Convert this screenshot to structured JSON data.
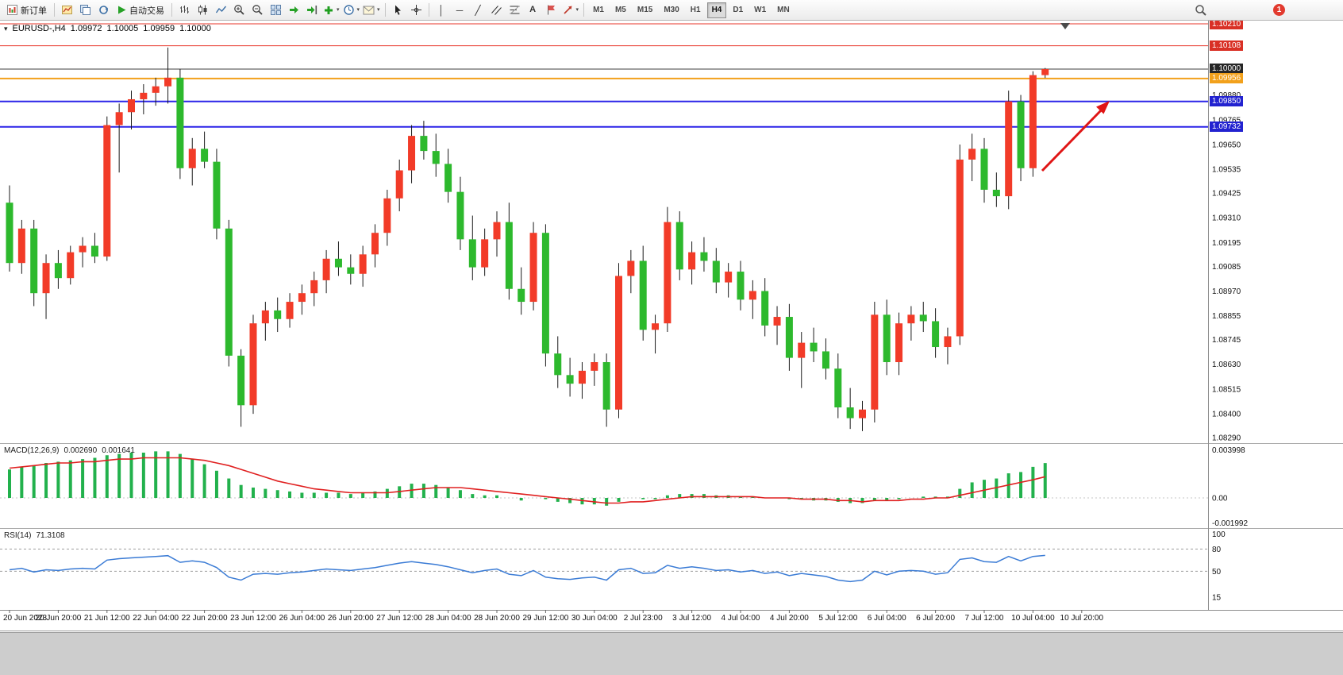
{
  "toolbar": {
    "new_order_label": "新订单",
    "autotrading_label": "自动交易",
    "glyphs": {
      "vertical_line": "│",
      "horizontal_line": "─",
      "trendline": "╱",
      "text_tool": "A",
      "caret": "▾",
      "one_click": "▾"
    },
    "timeframes": [
      "M1",
      "M5",
      "M15",
      "M30",
      "H1",
      "H4",
      "D1",
      "W1",
      "MN"
    ],
    "active_timeframe": "H4",
    "notification_count": "1"
  },
  "chart_header": {
    "symbol_period": "EURUSD-,H4",
    "open": "1.09972",
    "high": "1.10005",
    "low": "1.09959",
    "close": "1.10000"
  },
  "chart_data": {
    "type": "candlestick",
    "symbol": "EURUSD-",
    "timeframe": "H4",
    "convention": "red = bullish up candle, green = bearish down candle",
    "up_color": "#f23b28",
    "down_color": "#2db92d",
    "price_axis": {
      "visible_top": 1.1021,
      "visible_bottom": 1.0829,
      "ticks": [
        "1.09880",
        "1.09765",
        "1.09650",
        "1.09535",
        "1.09425",
        "1.09310",
        "1.09195",
        "1.09085",
        "1.08970",
        "1.08855",
        "1.08745",
        "1.08630",
        "1.08515",
        "1.08400",
        "1.08290"
      ]
    },
    "hlines": [
      {
        "price": 1.1021,
        "label": "1.10210",
        "color": "#e8352a",
        "label_bg": "#d93025",
        "width": 1
      },
      {
        "price": 1.10108,
        "label": "1.10108",
        "color": "#e8352a",
        "label_bg": "#d93025",
        "width": 1
      },
      {
        "price": 1.1,
        "label": "1.10000",
        "color": "#3f3f3f",
        "label_bg": "#262626",
        "width": 1
      },
      {
        "price": 1.09956,
        "label": "1.09956",
        "color": "#f2a11c",
        "label_bg": "#f2a11c",
        "width": 2
      },
      {
        "price": 1.0985,
        "label": "1.09850",
        "color": "#2b24e8",
        "label_bg": "#2222d0",
        "width": 2
      },
      {
        "price": 1.09732,
        "label": "1.09732",
        "color": "#2b24e8",
        "label_bg": "#2222d0",
        "width": 2
      }
    ],
    "time_labels": [
      "20 Jun 2023",
      "20 Jun 20:00",
      "21 Jun 12:00",
      "22 Jun 04:00",
      "22 Jun 20:00",
      "23 Jun 12:00",
      "26 Jun 04:00",
      "26 Jun 20:00",
      "27 Jun 12:00",
      "28 Jun 04:00",
      "28 Jun 20:00",
      "29 Jun 12:00",
      "30 Jun 04:00",
      "2 Jul 23:00",
      "3 Jul 12:00",
      "4 Jul 04:00",
      "4 Jul 20:00",
      "5 Jul 12:00",
      "6 Jul 04:00",
      "6 Jul 20:00",
      "7 Jul 12:00",
      "10 Jul 04:00",
      "10 Jul 20:00"
    ],
    "candles": [
      [
        1.0938,
        1.0946,
        1.0906,
        1.091
      ],
      [
        1.091,
        1.093,
        1.0905,
        1.0926
      ],
      [
        1.0926,
        1.093,
        1.089,
        1.0896
      ],
      [
        1.0896,
        1.0914,
        1.0884,
        1.091
      ],
      [
        1.091,
        1.0916,
        1.0898,
        1.0903
      ],
      [
        1.0903,
        1.0918,
        1.09,
        1.0915
      ],
      [
        1.0915,
        1.0922,
        1.0908,
        1.0918
      ],
      [
        1.0918,
        1.0924,
        1.091,
        1.0913
      ],
      [
        1.0913,
        1.0978,
        1.0911,
        1.0974
      ],
      [
        1.0974,
        1.0984,
        1.0952,
        1.098
      ],
      [
        1.098,
        1.099,
        1.0972,
        1.0986
      ],
      [
        1.0986,
        1.0993,
        1.0979,
        1.0989
      ],
      [
        1.0989,
        1.0996,
        1.0983,
        1.0992
      ],
      [
        1.0992,
        1.101,
        1.0984,
        1.0996
      ],
      [
        1.0996,
        1.1,
        1.0949,
        1.0954
      ],
      [
        1.0954,
        1.0968,
        1.0946,
        1.0963
      ],
      [
        1.0963,
        1.0971,
        1.0954,
        1.0957
      ],
      [
        1.0957,
        1.0963,
        1.0921,
        1.0926
      ],
      [
        1.0926,
        1.093,
        1.0862,
        1.0867
      ],
      [
        1.0867,
        1.087,
        1.0834,
        1.0844
      ],
      [
        1.0844,
        1.0886,
        1.084,
        1.0882
      ],
      [
        1.0882,
        1.0892,
        1.0874,
        1.0888
      ],
      [
        1.0888,
        1.0894,
        1.0878,
        1.0884
      ],
      [
        1.0884,
        1.0896,
        1.088,
        1.0892
      ],
      [
        1.0892,
        1.09,
        1.0886,
        1.0896
      ],
      [
        1.0896,
        1.0906,
        1.089,
        1.0902
      ],
      [
        1.0902,
        1.0916,
        1.0896,
        1.0912
      ],
      [
        1.0912,
        1.092,
        1.0904,
        1.0908
      ],
      [
        1.0908,
        1.0914,
        1.09,
        1.0905
      ],
      [
        1.0905,
        1.0918,
        1.0899,
        1.0914
      ],
      [
        1.0914,
        1.0928,
        1.0908,
        1.0924
      ],
      [
        1.0924,
        1.0944,
        1.0918,
        1.094
      ],
      [
        1.094,
        1.0958,
        1.0934,
        1.0953
      ],
      [
        1.0953,
        1.0974,
        1.0947,
        1.0969
      ],
      [
        1.0969,
        1.0976,
        1.0958,
        1.0962
      ],
      [
        1.0962,
        1.097,
        1.095,
        1.0956
      ],
      [
        1.0956,
        1.0963,
        1.0938,
        1.0943
      ],
      [
        1.0943,
        1.095,
        1.0916,
        1.0921
      ],
      [
        1.0921,
        1.0932,
        1.0902,
        1.0908
      ],
      [
        1.0908,
        1.0926,
        1.0904,
        1.0921
      ],
      [
        1.0921,
        1.0934,
        1.0913,
        1.0929
      ],
      [
        1.0929,
        1.0938,
        1.0893,
        1.0898
      ],
      [
        1.0898,
        1.0908,
        1.0886,
        1.0892
      ],
      [
        1.0892,
        1.0929,
        1.0888,
        1.0924
      ],
      [
        1.0924,
        1.0928,
        1.0862,
        1.0868
      ],
      [
        1.0868,
        1.0876,
        1.0852,
        1.0858
      ],
      [
        1.0858,
        1.0866,
        1.0848,
        1.0854
      ],
      [
        1.0854,
        1.0864,
        1.0847,
        1.086
      ],
      [
        1.086,
        1.0868,
        1.0853,
        1.0864
      ],
      [
        1.0864,
        1.0868,
        1.0834,
        1.0842
      ],
      [
        1.0842,
        1.091,
        1.0838,
        1.0904
      ],
      [
        1.0904,
        1.0916,
        1.0896,
        1.0911
      ],
      [
        1.0911,
        1.0918,
        1.0874,
        1.0879
      ],
      [
        1.0879,
        1.0886,
        1.0868,
        1.0882
      ],
      [
        1.0882,
        1.0936,
        1.0878,
        1.0929
      ],
      [
        1.0929,
        1.0934,
        1.0902,
        1.0907
      ],
      [
        1.0907,
        1.092,
        1.09,
        1.0915
      ],
      [
        1.0915,
        1.0922,
        1.0906,
        1.0911
      ],
      [
        1.0911,
        1.0917,
        1.0896,
        1.0901
      ],
      [
        1.0901,
        1.091,
        1.0894,
        1.0906
      ],
      [
        1.0906,
        1.0911,
        1.0888,
        1.0893
      ],
      [
        1.0893,
        1.0902,
        1.0884,
        1.0897
      ],
      [
        1.0897,
        1.0903,
        1.0876,
        1.0881
      ],
      [
        1.0881,
        1.089,
        1.0872,
        1.0885
      ],
      [
        1.0885,
        1.0891,
        1.086,
        1.0866
      ],
      [
        1.0866,
        1.0878,
        1.0852,
        1.0873
      ],
      [
        1.0873,
        1.088,
        1.0864,
        1.0869
      ],
      [
        1.0869,
        1.0875,
        1.0856,
        1.0861
      ],
      [
        1.0861,
        1.0868,
        1.0838,
        1.0843
      ],
      [
        1.0843,
        1.0852,
        1.0833,
        1.0838
      ],
      [
        1.0838,
        1.0846,
        1.0832,
        1.0842
      ],
      [
        1.0842,
        1.0892,
        1.0836,
        1.0886
      ],
      [
        1.0886,
        1.0893,
        1.0858,
        1.0864
      ],
      [
        1.0864,
        1.0887,
        1.0858,
        1.0882
      ],
      [
        1.0882,
        1.089,
        1.0874,
        1.0886
      ],
      [
        1.0886,
        1.0892,
        1.0878,
        1.0883
      ],
      [
        1.0883,
        1.0889,
        1.0866,
        1.0871
      ],
      [
        1.0871,
        1.088,
        1.0863,
        1.0876
      ],
      [
        1.0876,
        1.0965,
        1.0872,
        1.0958
      ],
      [
        1.0958,
        1.097,
        1.0948,
        1.0963
      ],
      [
        1.0963,
        1.0968,
        1.0938,
        1.0944
      ],
      [
        1.0944,
        1.0952,
        1.0936,
        1.0941
      ],
      [
        1.0941,
        1.099,
        1.0935,
        1.0985
      ],
      [
        1.0985,
        1.0988,
        1.0948,
        1.0954
      ],
      [
        1.0954,
        1.0999,
        1.095,
        1.09972
      ],
      [
        1.09972,
        1.10005,
        1.09959,
        1.1
      ]
    ]
  },
  "macd": {
    "label": "MACD(12,26,9)",
    "main_value": "0.002690",
    "signal_value": "0.001641",
    "scale": {
      "top": "0.003998",
      "zero": "0.00",
      "bottom": "-0.001992"
    },
    "histogram_color": "#22b14c",
    "signal_color": "#e02020",
    "histogram": [
      0.0022,
      0.0024,
      0.0025,
      0.0027,
      0.0028,
      0.0029,
      0.003,
      0.0031,
      0.0033,
      0.0034,
      0.0035,
      0.0035,
      0.0036,
      0.0036,
      0.0034,
      0.003,
      0.0026,
      0.0021,
      0.0015,
      0.001,
      0.0008,
      0.0007,
      0.0006,
      0.0005,
      0.0004,
      0.0004,
      0.0004,
      0.0004,
      0.0003,
      0.0004,
      0.0005,
      0.0007,
      0.0009,
      0.0011,
      0.0011,
      0.001,
      0.0008,
      0.0006,
      0.0003,
      0.0002,
      0.0002,
      0.0,
      -0.0002,
      0.0,
      -0.0001,
      -0.0003,
      -0.0004,
      -0.0005,
      -0.0005,
      -0.0006,
      -0.0003,
      0.0,
      -0.0001,
      -0.0001,
      0.0002,
      0.0003,
      0.0003,
      0.0003,
      0.0002,
      0.0002,
      0.0001,
      0.0001,
      0.0,
      0.0,
      -0.0001,
      -0.0001,
      -0.0002,
      -0.0002,
      -0.0003,
      -0.0004,
      -0.0004,
      -0.0002,
      -0.0002,
      -0.0001,
      0.0,
      0.0001,
      0.0001,
      0.0001,
      0.0007,
      0.0012,
      0.0014,
      0.0015,
      0.0019,
      0.002,
      0.0024,
      0.00269
    ],
    "signal": [
      0.0023,
      0.0024,
      0.0025,
      0.0026,
      0.0027,
      0.0027,
      0.0028,
      0.0028,
      0.0029,
      0.003,
      0.003,
      0.0031,
      0.0031,
      0.0031,
      0.0031,
      0.003,
      0.0029,
      0.0027,
      0.0025,
      0.0022,
      0.0019,
      0.0016,
      0.0013,
      0.0011,
      0.0009,
      0.0007,
      0.0006,
      0.0005,
      0.0004,
      0.0004,
      0.0004,
      0.0004,
      0.0005,
      0.0006,
      0.0007,
      0.0008,
      0.0008,
      0.0008,
      0.0007,
      0.0006,
      0.0005,
      0.0004,
      0.0003,
      0.0002,
      0.0001,
      0.0,
      -0.0001,
      -0.0002,
      -0.0003,
      -0.0004,
      -0.0004,
      -0.0003,
      -0.0003,
      -0.0002,
      -0.0001,
      0.0,
      0.0001,
      0.0001,
      0.0001,
      0.0001,
      0.0001,
      0.0001,
      0.0,
      0.0,
      0.0,
      -0.0001,
      -0.0001,
      -0.0001,
      -0.0002,
      -0.0002,
      -0.0003,
      -0.0002,
      -0.0002,
      -0.0002,
      -0.0001,
      -0.0001,
      0.0,
      0.0,
      0.0002,
      0.0004,
      0.0006,
      0.0008,
      0.001,
      0.0012,
      0.0014,
      0.001641
    ]
  },
  "rsi": {
    "label": "RSI(14)",
    "value": "71.3108",
    "line_color": "#3a7bd5",
    "levels": [
      {
        "label": "100",
        "value": 100,
        "dashed": false
      },
      {
        "label": "80",
        "value": 80,
        "dashed": true
      },
      {
        "label": "50",
        "value": 50,
        "dashed": true
      },
      {
        "label": "15",
        "value": 15,
        "dashed": false
      }
    ],
    "values": [
      52,
      54,
      49,
      52,
      51,
      53,
      54,
      53,
      65,
      67,
      68,
      69,
      70,
      71,
      62,
      64,
      62,
      55,
      42,
      38,
      46,
      47,
      46,
      48,
      49,
      51,
      53,
      52,
      51,
      53,
      55,
      58,
      61,
      63,
      61,
      59,
      56,
      52,
      48,
      51,
      53,
      46,
      44,
      51,
      42,
      40,
      39,
      41,
      42,
      38,
      52,
      54,
      47,
      48,
      58,
      54,
      56,
      54,
      51,
      52,
      49,
      51,
      47,
      49,
      44,
      47,
      45,
      43,
      38,
      36,
      38,
      50,
      45,
      50,
      51,
      50,
      46,
      48,
      66,
      68,
      63,
      62,
      70,
      64,
      70,
      71.31
    ]
  },
  "annotation": {
    "arrow_color": "#e01515"
  }
}
